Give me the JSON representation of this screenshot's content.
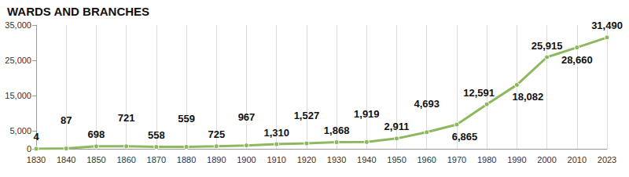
{
  "chart_data": {
    "type": "line",
    "title": "WARDS AND BRANCHES",
    "categories": [
      "1830",
      "1840",
      "1850",
      "1860",
      "1870",
      "1880",
      "1890",
      "1900",
      "1910",
      "1920",
      "1930",
      "1940",
      "1950",
      "1960",
      "1970",
      "1980",
      "1990",
      "2000",
      "2010",
      "2023"
    ],
    "values": [
      4,
      87,
      698,
      721,
      558,
      559,
      725,
      967,
      1310,
      1527,
      1868,
      1919,
      2911,
      4693,
      6865,
      12591,
      18082,
      25915,
      28660,
      31490
    ],
    "value_labels": [
      "4",
      "87",
      "698",
      "721",
      "558",
      "559",
      "725",
      "967",
      "1,310",
      "1,527",
      "1,868",
      "1,919",
      "2,911",
      "4,693",
      "6,865",
      "12,591",
      "18,082",
      "25,915",
      "28,660",
      "31,490"
    ],
    "color": "#8db85d",
    "ylim": [
      0,
      35000
    ],
    "yticks": [
      0,
      {
        "value": 5000,
        "label": "5,000"
      },
      {
        "value": 15000,
        "label": "15,000"
      },
      {
        "value": 25000,
        "label": "25,000"
      },
      {
        "value": 35000,
        "label": "35,000"
      }
    ],
    "grid": true,
    "data_labels": true,
    "marker": "circle"
  }
}
